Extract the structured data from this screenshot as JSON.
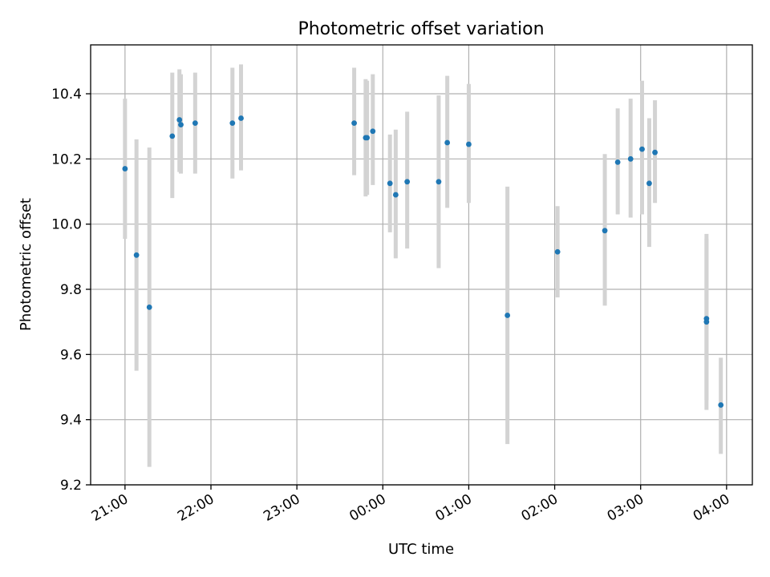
{
  "chart_data": {
    "type": "scatter",
    "title": "Photometric offset variation",
    "xlabel": "UTC time",
    "ylabel": "Photometric offset",
    "xlim_hours": [
      20.6,
      28.3
    ],
    "ylim": [
      9.2,
      10.55
    ],
    "x_ticks": [
      {
        "hour": 21,
        "label": "21:00"
      },
      {
        "hour": 22,
        "label": "22:00"
      },
      {
        "hour": 23,
        "label": "23:00"
      },
      {
        "hour": 24,
        "label": "00:00"
      },
      {
        "hour": 25,
        "label": "01:00"
      },
      {
        "hour": 26,
        "label": "02:00"
      },
      {
        "hour": 27,
        "label": "03:00"
      },
      {
        "hour": 28,
        "label": "04:00"
      }
    ],
    "y_ticks": [
      {
        "value": 9.2,
        "label": "9.2"
      },
      {
        "value": 9.4,
        "label": "9.4"
      },
      {
        "value": 9.6,
        "label": "9.6"
      },
      {
        "value": 9.8,
        "label": "9.8"
      },
      {
        "value": 10.0,
        "label": "10.0"
      },
      {
        "value": 10.2,
        "label": "10.2"
      },
      {
        "value": 10.4,
        "label": "10.4"
      }
    ],
    "grid": true,
    "colors": {
      "point": "#1f77b4",
      "error_bar": "#d3d3d3"
    },
    "points": [
      {
        "t": "21:00",
        "y": 10.17,
        "lo": 9.955,
        "hi": 10.385
      },
      {
        "t": "21:08",
        "y": 9.905,
        "lo": 9.55,
        "hi": 10.26
      },
      {
        "t": "21:17",
        "y": 9.745,
        "lo": 9.255,
        "hi": 10.235
      },
      {
        "t": "21:33",
        "y": 10.27,
        "lo": 10.08,
        "hi": 10.465
      },
      {
        "t": "21:38",
        "y": 10.32,
        "lo": 10.16,
        "hi": 10.475
      },
      {
        "t": "21:39",
        "y": 10.305,
        "lo": 10.155,
        "hi": 10.46
      },
      {
        "t": "21:49",
        "y": 10.31,
        "lo": 10.155,
        "hi": 10.465
      },
      {
        "t": "22:15",
        "y": 10.31,
        "lo": 10.14,
        "hi": 10.48
      },
      {
        "t": "22:21",
        "y": 10.325,
        "lo": 10.165,
        "hi": 10.49
      },
      {
        "t": "23:40",
        "y": 10.31,
        "lo": 10.15,
        "hi": 10.48
      },
      {
        "t": "23:48",
        "y": 10.265,
        "lo": 10.085,
        "hi": 10.445
      },
      {
        "t": "23:49",
        "y": 10.265,
        "lo": 10.09,
        "hi": 10.44
      },
      {
        "t": "23:53",
        "y": 10.285,
        "lo": 10.12,
        "hi": 10.46
      },
      {
        "t": "00:05",
        "y": 10.125,
        "lo": 9.975,
        "hi": 10.275
      },
      {
        "t": "00:09",
        "y": 10.09,
        "lo": 9.895,
        "hi": 10.29
      },
      {
        "t": "00:17",
        "y": 10.13,
        "lo": 9.925,
        "hi": 10.345
      },
      {
        "t": "00:39",
        "y": 10.13,
        "lo": 9.865,
        "hi": 10.395
      },
      {
        "t": "00:45",
        "y": 10.25,
        "lo": 10.05,
        "hi": 10.455
      },
      {
        "t": "01:00",
        "y": 10.245,
        "lo": 10.065,
        "hi": 10.43
      },
      {
        "t": "01:27",
        "y": 9.72,
        "lo": 9.325,
        "hi": 10.115
      },
      {
        "t": "02:02",
        "y": 9.915,
        "lo": 9.775,
        "hi": 10.055
      },
      {
        "t": "02:35",
        "y": 9.98,
        "lo": 9.75,
        "hi": 10.215
      },
      {
        "t": "02:44",
        "y": 10.19,
        "lo": 10.03,
        "hi": 10.355
      },
      {
        "t": "02:53",
        "y": 10.2,
        "lo": 10.02,
        "hi": 10.385
      },
      {
        "t": "03:01",
        "y": 10.23,
        "lo": 10.03,
        "hi": 10.44
      },
      {
        "t": "03:06",
        "y": 10.125,
        "lo": 9.93,
        "hi": 10.325
      },
      {
        "t": "03:10",
        "y": 10.22,
        "lo": 10.065,
        "hi": 10.38
      },
      {
        "t": "03:46",
        "y": 9.71,
        "lo": 9.43,
        "hi": 9.97
      },
      {
        "t": "03:46",
        "y": 9.7,
        "lo": 9.46,
        "hi": 9.955
      },
      {
        "t": "03:56",
        "y": 9.445,
        "lo": 9.295,
        "hi": 9.59
      }
    ]
  }
}
